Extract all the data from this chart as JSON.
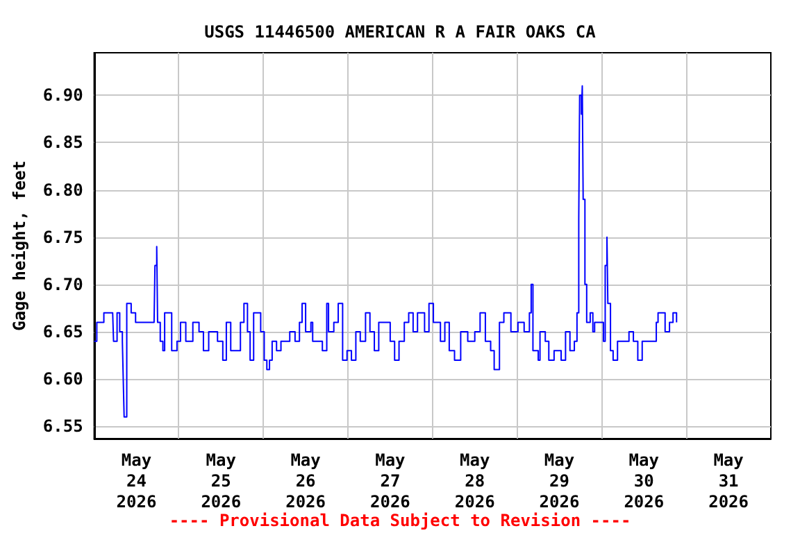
{
  "chart_data": {
    "type": "step",
    "title": "USGS 11446500 AMERICAN R A FAIR OAKS CA",
    "ylabel": "Gage height, feet",
    "annotations": [
      "---- Provisional Data Subject to Revision ----"
    ],
    "x": [
      "2026-05-24T00:00",
      "2026-05-24T00:45",
      "2026-05-24T02:45",
      "2026-05-24T05:15",
      "2026-05-24T05:30",
      "2026-05-24T06:30",
      "2026-05-24T07:15",
      "2026-05-24T08:00",
      "2026-05-24T08:15",
      "2026-05-24T08:30",
      "2026-05-24T09:15",
      "2026-05-24T10:30",
      "2026-05-24T11:45",
      "2026-05-24T17:00",
      "2026-05-24T17:15",
      "2026-05-24T17:45",
      "2026-05-24T18:00",
      "2026-05-24T18:45",
      "2026-05-24T19:30",
      "2026-05-24T20:00",
      "2026-05-24T22:00",
      "2026-05-24T23:30",
      "2026-05-25T00:30",
      "2026-05-25T02:00",
      "2026-05-25T04:00",
      "2026-05-25T05:45",
      "2026-05-25T07:00",
      "2026-05-25T08:30",
      "2026-05-25T11:00",
      "2026-05-25T12:30",
      "2026-05-25T13:30",
      "2026-05-25T14:45",
      "2026-05-25T17:30",
      "2026-05-25T18:30",
      "2026-05-25T19:30",
      "2026-05-25T20:15",
      "2026-05-25T21:15",
      "2026-05-25T23:15",
      "2026-05-26T00:15",
      "2026-05-26T01:00",
      "2026-05-26T01:45",
      "2026-05-26T02:30",
      "2026-05-26T03:45",
      "2026-05-26T05:00",
      "2026-05-26T07:30",
      "2026-05-26T09:00",
      "2026-05-26T10:15",
      "2026-05-26T11:00",
      "2026-05-26T12:00",
      "2026-05-26T13:30",
      "2026-05-26T14:00",
      "2026-05-26T16:45",
      "2026-05-26T18:00",
      "2026-05-26T18:30",
      "2026-05-26T20:00",
      "2026-05-26T21:15",
      "2026-05-26T22:30",
      "2026-05-26T23:45",
      "2026-05-27T01:00",
      "2026-05-27T02:15",
      "2026-05-27T03:30",
      "2026-05-27T05:00",
      "2026-05-27T06:15",
      "2026-05-27T07:30",
      "2026-05-27T08:45",
      "2026-05-27T10:00",
      "2026-05-27T12:00",
      "2026-05-27T13:15",
      "2026-05-27T14:30",
      "2026-05-27T16:00",
      "2026-05-27T17:15",
      "2026-05-27T18:30",
      "2026-05-27T19:45",
      "2026-05-27T21:45",
      "2026-05-27T23:00",
      "2026-05-28T00:15",
      "2026-05-28T02:15",
      "2026-05-28T03:30",
      "2026-05-28T04:45",
      "2026-05-28T06:15",
      "2026-05-28T08:00",
      "2026-05-28T10:00",
      "2026-05-28T12:00",
      "2026-05-28T13:30",
      "2026-05-28T15:00",
      "2026-05-28T16:30",
      "2026-05-28T17:30",
      "2026-05-28T19:00",
      "2026-05-28T20:15",
      "2026-05-28T22:15",
      "2026-05-29T00:15",
      "2026-05-29T02:00",
      "2026-05-29T03:30",
      "2026-05-29T04:00",
      "2026-05-29T04:30",
      "2026-05-29T06:00",
      "2026-05-29T06:30",
      "2026-05-29T08:00",
      "2026-05-29T09:00",
      "2026-05-29T10:30",
      "2026-05-29T12:30",
      "2026-05-29T13:45",
      "2026-05-29T15:00",
      "2026-05-29T16:15",
      "2026-05-29T17:00",
      "2026-05-29T17:30",
      "2026-05-29T17:45",
      "2026-05-29T18:15",
      "2026-05-29T18:30",
      "2026-05-29T18:45",
      "2026-05-29T19:15",
      "2026-05-29T19:45",
      "2026-05-29T20:45",
      "2026-05-29T21:30",
      "2026-05-29T22:00",
      "2026-05-30T00:00",
      "2026-05-30T00:30",
      "2026-05-30T01:00",
      "2026-05-30T01:30",
      "2026-05-30T01:45",
      "2026-05-30T02:30",
      "2026-05-30T03:15",
      "2026-05-30T04:30",
      "2026-05-30T05:45",
      "2026-05-30T07:45",
      "2026-05-30T09:00",
      "2026-05-30T10:15",
      "2026-05-30T11:30",
      "2026-05-30T13:30",
      "2026-05-30T15:30",
      "2026-05-30T16:00",
      "2026-05-30T17:30",
      "2026-05-30T18:00",
      "2026-05-30T19:15",
      "2026-05-30T20:15",
      "2026-05-30T21:15"
    ],
    "series": [
      {
        "color": "#0000ff",
        "values": [
          6.64,
          6.66,
          6.67,
          6.67,
          6.64,
          6.67,
          6.65,
          6.64,
          6.6,
          6.56,
          6.68,
          6.67,
          6.66,
          6.66,
          6.72,
          6.74,
          6.66,
          6.64,
          6.63,
          6.67,
          6.63,
          6.64,
          6.66,
          6.64,
          6.66,
          6.65,
          6.63,
          6.65,
          6.64,
          6.62,
          6.66,
          6.63,
          6.66,
          6.68,
          6.65,
          6.62,
          6.67,
          6.65,
          6.62,
          6.61,
          6.62,
          6.64,
          6.63,
          6.64,
          6.65,
          6.64,
          6.66,
          6.68,
          6.65,
          6.66,
          6.64,
          6.63,
          6.68,
          6.65,
          6.66,
          6.68,
          6.62,
          6.63,
          6.62,
          6.65,
          6.64,
          6.67,
          6.65,
          6.63,
          6.66,
          6.66,
          6.64,
          6.62,
          6.64,
          6.66,
          6.67,
          6.65,
          6.67,
          6.65,
          6.68,
          6.66,
          6.64,
          6.66,
          6.63,
          6.62,
          6.65,
          6.64,
          6.65,
          6.67,
          6.64,
          6.63,
          6.61,
          6.66,
          6.67,
          6.65,
          6.66,
          6.65,
          6.67,
          6.7,
          6.63,
          6.62,
          6.65,
          6.64,
          6.62,
          6.63,
          6.62,
          6.65,
          6.63,
          6.64,
          6.67,
          6.77,
          6.9,
          6.88,
          6.91,
          6.79,
          6.7,
          6.66,
          6.67,
          6.65,
          6.66,
          6.66,
          6.64,
          6.72,
          6.75,
          6.68,
          6.63,
          6.62,
          6.64,
          6.64,
          6.65,
          6.64,
          6.62,
          6.64,
          6.64,
          6.66,
          6.67,
          6.67,
          6.65,
          6.66,
          6.67,
          6.66
        ]
      }
    ],
    "xlim": [
      "2026-05-24T00:00",
      "2026-06-01T00:00"
    ],
    "xticks": [
      {
        "value": "2026-05-24T12:00",
        "label": "May\n24\n2026"
      },
      {
        "value": "2026-05-25T00:00",
        "label": null
      },
      {
        "value": "2026-05-25T12:00",
        "label": "May\n25\n2026"
      },
      {
        "value": "2026-05-26T00:00",
        "label": null
      },
      {
        "value": "2026-05-26T12:00",
        "label": "May\n26\n2026"
      },
      {
        "value": "2026-05-27T00:00",
        "label": null
      },
      {
        "value": "2026-05-27T12:00",
        "label": "May\n27\n2026"
      },
      {
        "value": "2026-05-28T00:00",
        "label": null
      },
      {
        "value": "2026-05-28T12:00",
        "label": "May\n28\n2026"
      },
      {
        "value": "2026-05-29T00:00",
        "label": null
      },
      {
        "value": "2026-05-29T12:00",
        "label": "May\n29\n2026"
      },
      {
        "value": "2026-05-30T00:00",
        "label": null
      },
      {
        "value": "2026-05-30T12:00",
        "label": "May\n30\n2026"
      },
      {
        "value": "2026-05-31T00:00",
        "label": null
      },
      {
        "value": "2026-05-31T12:00",
        "label": "May\n31\n2026"
      }
    ],
    "ylim": [
      6.537,
      6.945
    ],
    "yticks": [
      6.55,
      {
        "value": 6.6,
        "label": "6.60"
      },
      6.65,
      {
        "value": 6.7,
        "label": "6.70"
      },
      6.75,
      {
        "value": 6.8,
        "label": "6.80"
      },
      6.85,
      {
        "value": 6.9,
        "label": "6.90"
      }
    ],
    "grid": true
  }
}
